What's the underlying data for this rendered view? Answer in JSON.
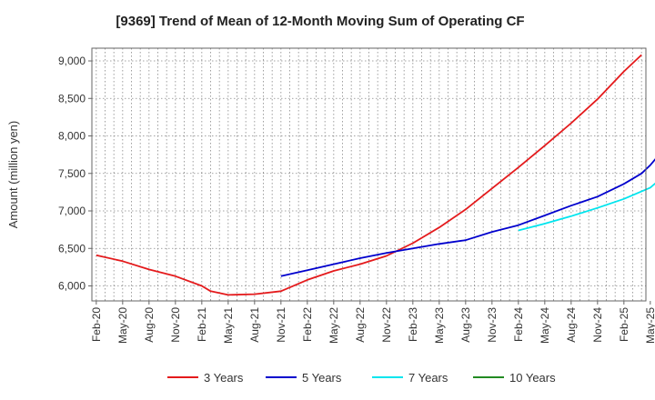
{
  "chart_data": {
    "type": "line",
    "title": "[9369]  Trend of Mean of 12-Month Moving Sum of Operating CF",
    "xlabel": "",
    "ylabel": "Amount (million yen)",
    "ylim": [
      5800,
      9170
    ],
    "yticks": [
      6000,
      6500,
      7000,
      7500,
      8000,
      8500,
      9000
    ],
    "ytick_labels": [
      "6,000",
      "6,500",
      "7,000",
      "7,500",
      "8,000",
      "8,500",
      "9,000"
    ],
    "x_start": "Feb-20",
    "x_months": 63,
    "xtick_labels": [
      "Feb-20",
      "May-20",
      "Aug-20",
      "Nov-20",
      "Feb-21",
      "May-21",
      "Aug-21",
      "Nov-21",
      "Feb-22",
      "May-22",
      "Aug-22",
      "Nov-22",
      "Feb-23",
      "May-23",
      "Aug-23",
      "Nov-23",
      "Feb-24",
      "May-24",
      "Aug-24",
      "Nov-24",
      "Feb-25",
      "May-25"
    ],
    "grid": true,
    "legend_position": "bottom",
    "series": [
      {
        "name": "3 Years",
        "color": "#e41a1c",
        "points": [
          [
            0,
            6410
          ],
          [
            3,
            6330
          ],
          [
            6,
            6220
          ],
          [
            9,
            6130
          ],
          [
            12,
            6000
          ],
          [
            13,
            5930
          ],
          [
            15,
            5880
          ],
          [
            18,
            5890
          ],
          [
            21,
            5930
          ],
          [
            24,
            6080
          ],
          [
            27,
            6200
          ],
          [
            30,
            6290
          ],
          [
            33,
            6400
          ],
          [
            36,
            6570
          ],
          [
            39,
            6780
          ],
          [
            42,
            7020
          ],
          [
            45,
            7300
          ],
          [
            48,
            7580
          ],
          [
            51,
            7870
          ],
          [
            54,
            8170
          ],
          [
            57,
            8490
          ],
          [
            60,
            8860
          ],
          [
            62,
            9080
          ]
        ]
      },
      {
        "name": "5 Years",
        "color": "#0000cd",
        "points": [
          [
            21,
            6130
          ],
          [
            24,
            6210
          ],
          [
            27,
            6290
          ],
          [
            30,
            6370
          ],
          [
            33,
            6440
          ],
          [
            36,
            6500
          ],
          [
            39,
            6560
          ],
          [
            42,
            6610
          ],
          [
            45,
            6720
          ],
          [
            48,
            6810
          ],
          [
            51,
            6940
          ],
          [
            54,
            7070
          ],
          [
            57,
            7190
          ],
          [
            60,
            7360
          ],
          [
            62,
            7500
          ],
          [
            63,
            7610
          ],
          [
            64,
            7750
          ]
        ]
      },
      {
        "name": "7 Years",
        "color": "#00e5ee",
        "points": [
          [
            48,
            6740
          ],
          [
            51,
            6830
          ],
          [
            54,
            6930
          ],
          [
            57,
            7040
          ],
          [
            60,
            7160
          ],
          [
            63,
            7310
          ],
          [
            64,
            7410
          ]
        ]
      },
      {
        "name": "10 Years",
        "color": "#228b22",
        "points": []
      }
    ]
  }
}
